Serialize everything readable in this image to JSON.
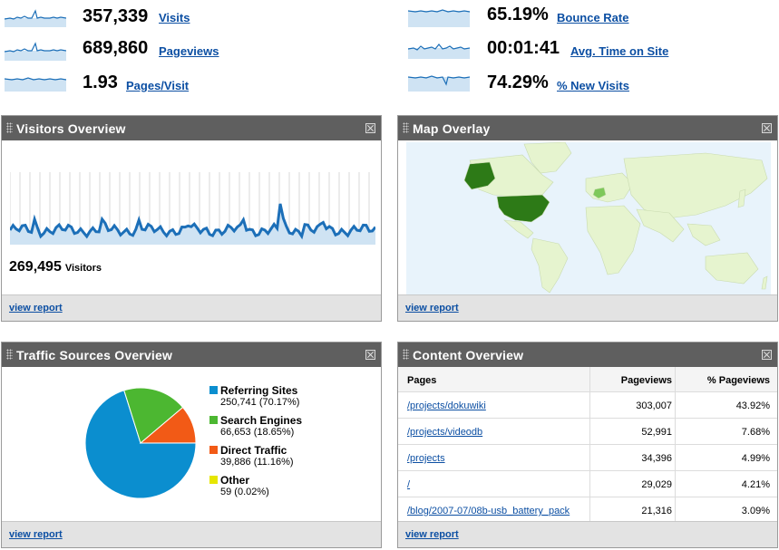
{
  "metrics": [
    {
      "value": "357,339",
      "label": "Visits"
    },
    {
      "value": "689,860",
      "label": "Pageviews"
    },
    {
      "value": "1.93",
      "label": "Pages/Visit"
    },
    {
      "value": "65.19%",
      "label": "Bounce Rate"
    },
    {
      "value": "00:01:41",
      "label": "Avg. Time on Site"
    },
    {
      "value": "74.29%",
      "label": "% New Visits"
    }
  ],
  "visitors": {
    "title": "Visitors Overview",
    "count": "269,495",
    "count_label": "Visitors",
    "link": "view report"
  },
  "map": {
    "title": "Map Overlay",
    "link": "view report"
  },
  "traffic": {
    "title": "Traffic Sources Overview",
    "link": "view report",
    "sources": [
      {
        "name": "Referring Sites",
        "detail": "250,741 (70.17%)",
        "percent": 70.17,
        "color": "#0b8ecf"
      },
      {
        "name": "Search Engines",
        "detail": "66,653 (18.65%)",
        "percent": 18.65,
        "color": "#4cb731"
      },
      {
        "name": "Direct Traffic",
        "detail": "39,886 (11.16%)",
        "percent": 11.16,
        "color": "#f25a16"
      },
      {
        "name": "Other",
        "detail": "59 (0.02%)",
        "percent": 0.02,
        "color": "#e6e600"
      }
    ]
  },
  "content": {
    "title": "Content Overview",
    "link": "view report",
    "headers": [
      "Pages",
      "Pageviews",
      "% Pageviews"
    ],
    "rows": [
      {
        "page": "/projects/dokuwiki",
        "views": "303,007",
        "pct": "43.92%"
      },
      {
        "page": "/projects/videodb",
        "views": "52,991",
        "pct": "7.68%"
      },
      {
        "page": "/projects",
        "views": "34,396",
        "pct": "4.99%"
      },
      {
        "page": "/",
        "views": "29,029",
        "pct": "4.21%"
      },
      {
        "page": "/blog/2007-07/08b-usb_battery_pack",
        "views": "21,316",
        "pct": "3.09%"
      }
    ]
  },
  "colors": {
    "link": "#0c4fa3",
    "header_bg": "#5f5f5f",
    "sparkline": "#1c6fb8",
    "sparkline_fill": "#cfe3f3",
    "map_ocean": "#e8f3fb",
    "map_land": "#e6f4cf",
    "map_high": "#2d7a17"
  }
}
